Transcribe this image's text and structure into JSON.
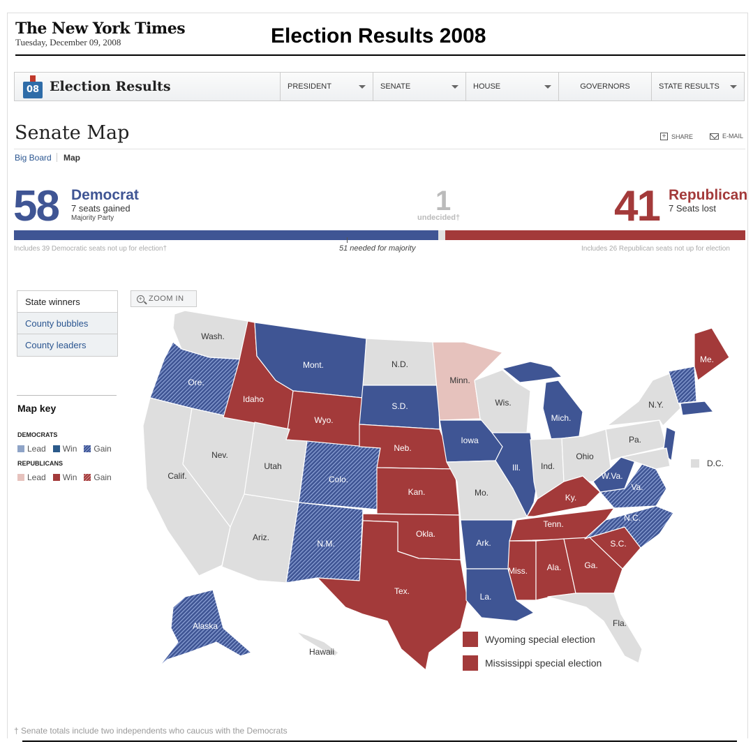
{
  "header": {
    "masthead": "The New York Times",
    "date": "Tuesday, December 09, 2008",
    "title": "Election Results 2008"
  },
  "nav": {
    "logo_badge": "08",
    "logo_text": "Election Results",
    "items": [
      "PRESIDENT",
      "SENATE",
      "HOUSE",
      "GOVERNORS",
      "STATE RESULTS"
    ]
  },
  "page": {
    "title": "Senate Map",
    "share": "SHARE",
    "email": "E-MAIL",
    "crumbs": [
      "Big Board",
      "Map"
    ]
  },
  "tally": {
    "dem_count": "58",
    "dem_party": "Democrat",
    "dem_change": "7 seats gained",
    "dem_note": "Majority Party",
    "und_count": "1",
    "und_label": "undecided†",
    "rep_count": "41",
    "rep_party": "Republican",
    "rep_change": "7 Seats lost",
    "dem_footer": "Includes 39 Democratic seats not up for election†",
    "majority_note": "51 needed for majority",
    "rep_footer": "Includes 26 Republican seats not up for election",
    "dem_seats": 58,
    "undecided_seats": 1,
    "rep_seats": 41,
    "majority_seats": 51
  },
  "views": [
    "State winners",
    "County bubbles",
    "County leaders"
  ],
  "zoom_label": "ZOOM IN",
  "key": {
    "title": "Map key",
    "democrats": "DEMOCRATS",
    "republicans": "REPUBLICANS",
    "items": [
      "Lead",
      "Win",
      "Gain"
    ]
  },
  "colors": {
    "dem": "#3f5594",
    "rep": "#a33a3a",
    "dem_lead": "#8fa4c7",
    "rep_lead": "#e6c2bd",
    "none": "#dedede"
  },
  "legend": [
    "Wyoming special election",
    "Mississippi special election"
  ],
  "dc_label": "D.C.",
  "state_labels": {
    "wa": "Wash.",
    "or": "Ore.",
    "ca": "Calif.",
    "nv": "Nev.",
    "id": "Idaho",
    "mt": "Mont.",
    "wy": "Wyo.",
    "ut": "Utah",
    "az": "Ariz.",
    "co": "Colo.",
    "nm": "N.M.",
    "nd": "N.D.",
    "sd": "S.D.",
    "ne": "Neb.",
    "ks": "Kan.",
    "ok": "Okla.",
    "tx": "Tex.",
    "mn": "Minn.",
    "ia": "Iowa",
    "mo": "Mo.",
    "ar": "Ark.",
    "la": "La.",
    "wi": "Wis.",
    "il": "Ill.",
    "mi": "Mich.",
    "in": "Ind.",
    "oh": "Ohio",
    "ky": "Ky.",
    "tn": "Tenn.",
    "ms": "Miss.",
    "al": "Ala.",
    "ga": "Ga.",
    "fl": "Fla.",
    "sc": "S.C.",
    "nc": "N.C.",
    "va": "Va.",
    "wv": "W.Va.",
    "pa": "Pa.",
    "ny": "N.Y.",
    "me": "Me.",
    "ak": "Alaska",
    "hi": "Hawaii"
  },
  "footnote": "† Senate totals include two independents who caucus with the Democrats"
}
